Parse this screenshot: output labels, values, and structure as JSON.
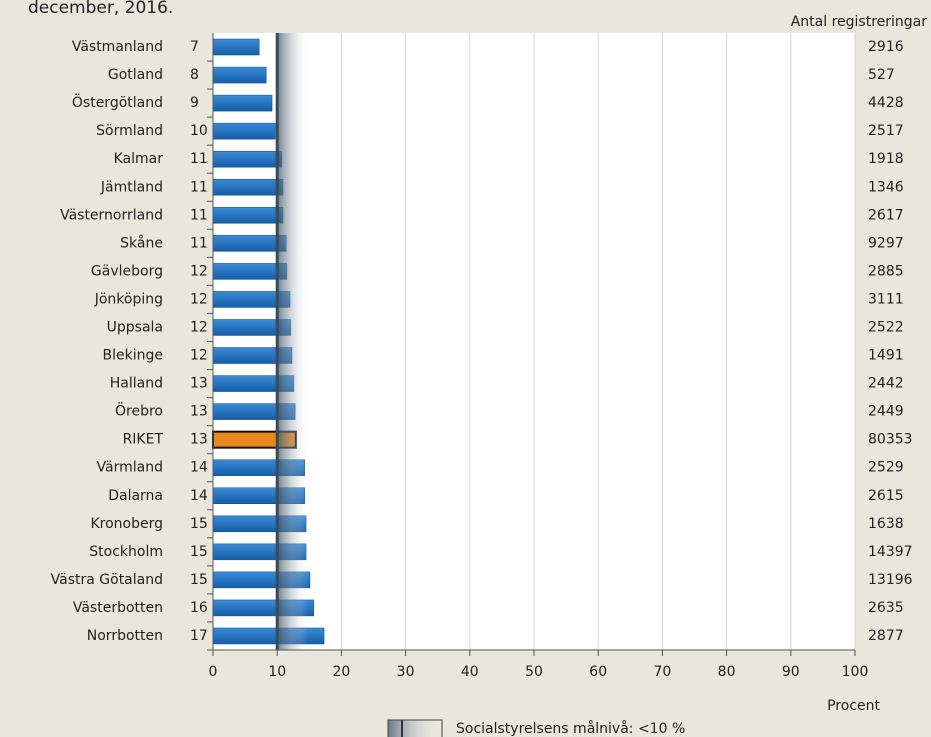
{
  "chart_data": {
    "type": "bar",
    "orientation": "horizontal",
    "title": "december, 2016.",
    "count_label": "Antal registreringar",
    "xlabel": "Procent",
    "legend_label": "Socialstyrelsens målnivå: <10 %",
    "target": 10,
    "categories": [
      "Västmanland",
      "Gotland",
      "Östergötland",
      "Sörmland",
      "Kalmar",
      "Jämtland",
      "Västernorrland",
      "Skåne",
      "Gävleborg",
      "Jönköping",
      "Uppsala",
      "Blekinge",
      "Halland",
      "Örebro",
      "RIKET",
      "Värmland",
      "Dalarna",
      "Kronoberg",
      "Stockholm",
      "Västra Götaland",
      "Västerbotten",
      "Norrbotten"
    ],
    "values": [
      7.2,
      8.3,
      9.2,
      9.7,
      10.7,
      10.9,
      10.9,
      11.4,
      11.5,
      12.0,
      12.1,
      12.3,
      12.6,
      12.8,
      12.9,
      14.3,
      14.3,
      14.5,
      14.5,
      15.1,
      15.7,
      17.3
    ],
    "value_labels": [
      "7",
      "8",
      "9",
      "10",
      "11",
      "11",
      "11",
      "11",
      "12",
      "12",
      "12",
      "12",
      "13",
      "13",
      "13",
      "14",
      "14",
      "15",
      "15",
      "15",
      "16",
      "17"
    ],
    "counts": [
      "2916",
      "527",
      "4428",
      "2517",
      "1918",
      "1346",
      "2617",
      "9297",
      "2885",
      "3111",
      "2522",
      "1491",
      "2442",
      "2449",
      "80353",
      "2529",
      "2615",
      "1638",
      "14397",
      "13196",
      "2635",
      "2877"
    ],
    "color": "#1c6fc0",
    "highlight": {
      "category": "RIKET",
      "color": "#e8891c"
    },
    "xlim": [
      0,
      100
    ],
    "xticks": [
      0,
      10,
      20,
      30,
      40,
      50,
      60,
      70,
      80,
      90,
      100
    ],
    "grid": true
  }
}
